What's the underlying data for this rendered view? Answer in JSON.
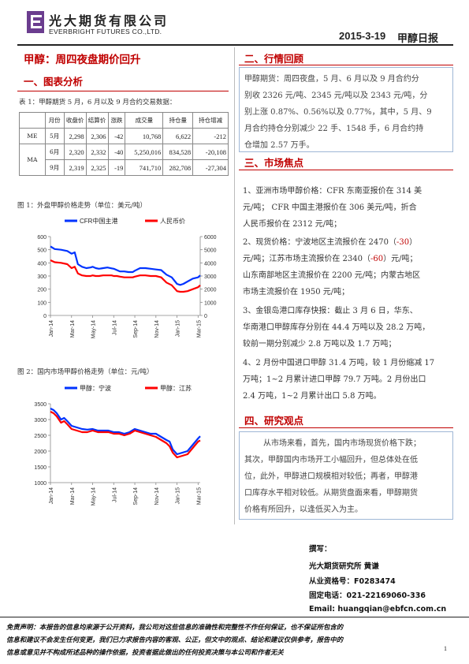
{
  "header": {
    "company_cn": "光大期货有限公司",
    "company_en": "EVERBRIGHT FUTURES CO.,LTD.",
    "date": "2015-3-19",
    "report_title": "甲醇日报",
    "brand_color": "#6b3d8f",
    "accent_color": "#c00000"
  },
  "headline": "甲醇：周四夜盘期价回升",
  "section1": {
    "title": "一、图表分析",
    "table_caption": "表 1：甲醇期货 5 月，6 月以及 9 月合约交易数据：",
    "table": {
      "headers": [
        "",
        "月份",
        "收盘价",
        "结算价",
        "涨跌",
        "成交量",
        "持仓量",
        "持仓增减"
      ],
      "rows": [
        {
          "contract": "ME",
          "month": "5月",
          "close": "2,298",
          "settle": "2,306",
          "change": "-42",
          "volume": "10,768",
          "oi": "6,622",
          "oi_change": "-212"
        },
        {
          "contract": "MA",
          "month": "6月",
          "close": "2,320",
          "settle": "2,332",
          "change": "-40",
          "volume": "5,250,016",
          "oi": "834,528",
          "oi_change": "-20,108"
        },
        {
          "contract": "",
          "month": "9月",
          "close": "2,319",
          "settle": "2,325",
          "change": "-19",
          "volume": "741,710",
          "oi": "282,708",
          "oi_change": "-27,304"
        }
      ]
    },
    "fig1_caption": "图 1：外盘甲醇价格走势（单位：美元/吨）",
    "fig2_caption": "图 2：国内市场甲醇价格走势（单位：元/吨）"
  },
  "section2": {
    "title": "二、行情回顾",
    "lines": [
      "甲醇期货：周四夜盘，5 月、6 月以及 9 月合约分",
      "别收 2326 元/吨、2345 元/吨以及 2343 元/吨，分",
      "别上涨 0.87%、0.56%以及 0.77%，其中，5 月、9",
      "月合约持仓分别减少 22 手、1548 手，6 月合约持",
      "仓增加 2.57 万手。"
    ]
  },
  "section3": {
    "title": "三、市场焦点",
    "p1": [
      "1、亚洲市场甲醇价格：CFR 东南亚报价在 314 美",
      "元/吨；  CFR 中国主港报价在 306 美元/吨，折合",
      "人民币报价在 2312 元/吨；"
    ],
    "p2_line1_pre": "2、现货价格：宁波地区主流报价在  2470（",
    "p2_line1_red": "-30",
    "p2_line1_post": "）",
    "p2_line2_pre": "元/吨；江苏市场主流报价在  2340（",
    "p2_line2_red": "-60",
    "p2_line2_post": "）元/吨；",
    "p2_rest": [
      "山东南部地区主流报价在 2200 元/吨；内蒙古地区",
      "市场主流报价在 1950 元/吨；"
    ],
    "p3": [
      "3、金银岛港口库存快报：截止 3 月 6 日，华东、",
      "华南港口甲醇库存分别在 44.4 万吨以及 28.2 万吨，",
      "较前一期分别减少 2.8 万吨以及 1.7 万吨；"
    ],
    "p4": [
      "4、2 月份中国进口甲醇 31.4 万吨，较 1 月份缩减 17",
      "万吨；1~2 月累计进口甲醇 79.7 万吨。2 月份出口",
      "2.4 万吨，1~2 月累计出口 5.8 万吨。"
    ]
  },
  "section4": {
    "title": "四、研究观点",
    "lines": [
      "从市场来看，首先，国内市场现货价格下跌；",
      "其次，甲醇国内市场开工小幅回升，但总体处在低",
      "位，此外，甲醇进口规模相对较低；再者，甲醇港",
      "口库存水平相对较低。从期货盘面来看，甲醇期货",
      "价格有所回升，以逢低买入为主。"
    ]
  },
  "author": {
    "label": "撰写：",
    "org_name": "光大期货研究所    黄谦",
    "license": "从业资格号：F0283474",
    "phone": "固定电话：021-22169060-336",
    "email": "Email:  huangqian@ebfcn.com.cn"
  },
  "disclaimer": [
    "免责声明：本报告的信息均来源于公开资料，我公司对这些信息的准确性和完整性不作任何保证，也不保证所包含的",
    "信息和建议不会发生任何变更，我们已力求报告内容的客观、公正，但文中的观点、结论和建议仅供参考，报告中的",
    "信息或意见并不构成所述品种的操作依据，投资者据此做出的任何投资决策与本公司和作者无关"
  ],
  "page_number": "1",
  "chart_data": [
    {
      "type": "line",
      "title": "",
      "x_ticks": [
        "Jan-14",
        "Mar-14",
        "May-14",
        "Jul-14",
        "Sep-14",
        "Nov-14",
        "Jan-15",
        "Mar-15"
      ],
      "series": [
        {
          "name": "CFR中国主港",
          "axis": "left",
          "color": "#0033ff",
          "x": [
            0,
            0.4,
            1,
            1.6,
            2,
            2.3,
            2.6,
            3,
            3.4,
            3.8,
            4,
            4.3,
            4.6,
            5,
            5.4,
            5.8,
            6,
            6.3,
            6.6,
            7,
            7.4,
            7.8,
            8,
            8.5,
            9,
            9.5,
            10,
            10.5,
            11,
            11.5,
            12,
            12.3,
            12.6,
            13,
            13.5,
            14,
            14.2
          ],
          "values": [
            525,
            505,
            500,
            490,
            470,
            480,
            390,
            370,
            360,
            365,
            370,
            360,
            355,
            360,
            365,
            358,
            355,
            345,
            335,
            335,
            330,
            330,
            340,
            360,
            360,
            355,
            350,
            345,
            310,
            290,
            240,
            232,
            240,
            258,
            280,
            290,
            305
          ]
        },
        {
          "name": "人民币价",
          "axis": "right",
          "color": "#ff0000",
          "x": [
            0,
            0.4,
            1,
            1.6,
            2,
            2.3,
            2.6,
            3,
            3.4,
            3.8,
            4,
            4.3,
            4.6,
            5,
            5.4,
            5.8,
            6,
            6.3,
            6.6,
            7,
            7.4,
            7.8,
            8,
            8.5,
            9,
            9.5,
            10,
            10.5,
            11,
            11.5,
            12,
            12.3,
            12.6,
            13,
            13.5,
            14,
            14.2
          ],
          "values": [
            4200,
            4050,
            4000,
            3900,
            3600,
            3700,
            3200,
            3050,
            3000,
            3000,
            3050,
            3000,
            3000,
            3050,
            3050,
            3050,
            3000,
            3000,
            2950,
            2900,
            2900,
            2900,
            2950,
            3050,
            3050,
            3000,
            3000,
            2900,
            2500,
            2300,
            1850,
            1800,
            1800,
            1850,
            2000,
            2150,
            2300
          ]
        }
      ],
      "ylim_left": [
        0,
        600
      ],
      "yticks_left": [
        0,
        100,
        200,
        300,
        400,
        500,
        600
      ],
      "ylim_right": [
        0,
        6000
      ],
      "yticks_right": [
        0,
        1000,
        2000,
        3000,
        4000,
        5000,
        6000
      ],
      "legend": "top"
    },
    {
      "type": "line",
      "title": "",
      "x_ticks": [
        "Jan-14",
        "Mar-14",
        "May-14",
        "Jul-14",
        "Sep-14",
        "Nov-14",
        "Jan-15",
        "Mar-15"
      ],
      "series": [
        {
          "name": "甲醇：宁波",
          "color": "#0033ff",
          "x": [
            0,
            0.3,
            0.6,
            1,
            1.3,
            1.6,
            2,
            2.5,
            3,
            3.5,
            4,
            4.5,
            5,
            5.5,
            6,
            6.5,
            7,
            7.5,
            8,
            8.5,
            9,
            9.5,
            10,
            10.5,
            11,
            11.3,
            11.6,
            12,
            12.5,
            13,
            13.5,
            14,
            14.2
          ],
          "values": [
            3350,
            3300,
            3200,
            3000,
            3050,
            2950,
            2800,
            2750,
            2700,
            2680,
            2700,
            2650,
            2650,
            2650,
            2600,
            2600,
            2550,
            2600,
            2700,
            2650,
            2600,
            2550,
            2550,
            2450,
            2350,
            2300,
            2050,
            1900,
            1950,
            2000,
            2200,
            2400,
            2470
          ]
        },
        {
          "name": "甲醇：江苏",
          "color": "#ff0000",
          "x": [
            0,
            0.3,
            0.6,
            1,
            1.3,
            1.6,
            2,
            2.5,
            3,
            3.5,
            4,
            4.5,
            5,
            5.5,
            6,
            6.5,
            7,
            7.5,
            8,
            8.5,
            9,
            9.5,
            10,
            10.5,
            11,
            11.3,
            11.6,
            12,
            12.5,
            13,
            13.5,
            14,
            14.2
          ],
          "values": [
            3250,
            3200,
            3100,
            2900,
            2950,
            2850,
            2700,
            2650,
            2600,
            2600,
            2650,
            2600,
            2600,
            2600,
            2550,
            2550,
            2500,
            2550,
            2650,
            2600,
            2550,
            2500,
            2450,
            2350,
            2250,
            2150,
            1950,
            1800,
            1850,
            1900,
            2100,
            2300,
            2340
          ]
        }
      ],
      "ylim": [
        1000,
        3500
      ],
      "yticks": [
        1000,
        1500,
        2000,
        2500,
        3000,
        3500
      ],
      "legend": "top"
    }
  ]
}
